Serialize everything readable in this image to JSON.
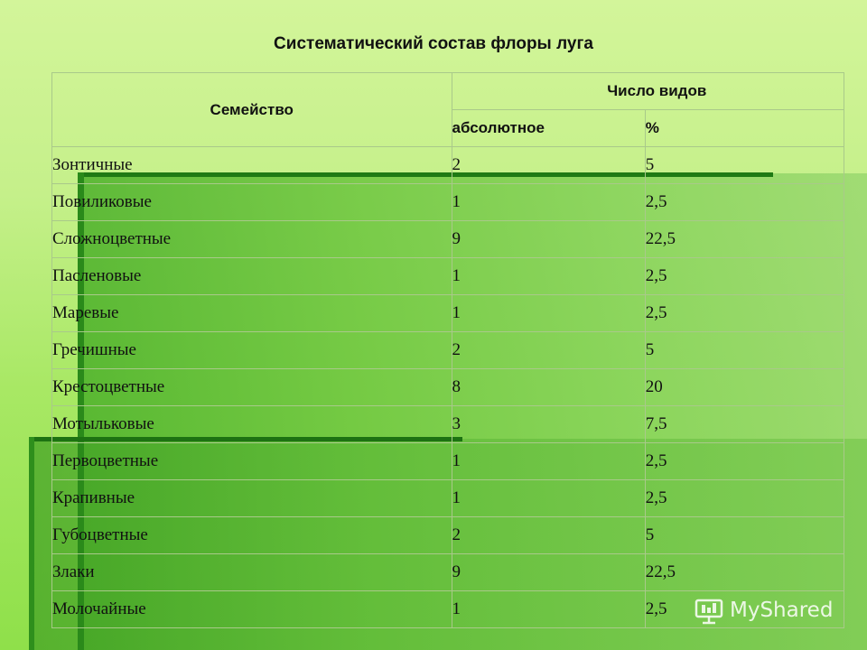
{
  "title": "Систематический состав флоры луга",
  "table": {
    "header_family": "Семейство",
    "header_count": "Число видов",
    "header_absolute": "абсолютное",
    "header_percent": "%",
    "rows": [
      {
        "family": "Зонтичные",
        "absolute": "2",
        "percent": "5"
      },
      {
        "family": "Повиликовые",
        "absolute": "1",
        "percent": "2,5"
      },
      {
        "family": "Сложноцветные",
        "absolute": "9",
        "percent": "22,5"
      },
      {
        "family": "Пасленовые",
        "absolute": "1",
        "percent": "2,5"
      },
      {
        "family": "Маревые",
        "absolute": "1",
        "percent": "2,5"
      },
      {
        "family": "Гречишные",
        "absolute": "2",
        "percent": "5"
      },
      {
        "family": "Крестоцветные",
        "absolute": "8",
        "percent": "20"
      },
      {
        "family": "Мотыльковые",
        "absolute": "3",
        "percent": "7,5"
      },
      {
        "family": "Первоцветные",
        "absolute": "1",
        "percent": "2,5"
      },
      {
        "family": "Крапивные",
        "absolute": "1",
        "percent": "2,5"
      },
      {
        "family": "Губоцветные",
        "absolute": "2",
        "percent": "5"
      },
      {
        "family": "Злаки",
        "absolute": "9",
        "percent": "22,5"
      },
      {
        "family": "Молочайные",
        "absolute": "1",
        "percent": "2,5"
      }
    ]
  },
  "watermark": {
    "text": "MyShared",
    "icon": "projector-screen-icon"
  }
}
